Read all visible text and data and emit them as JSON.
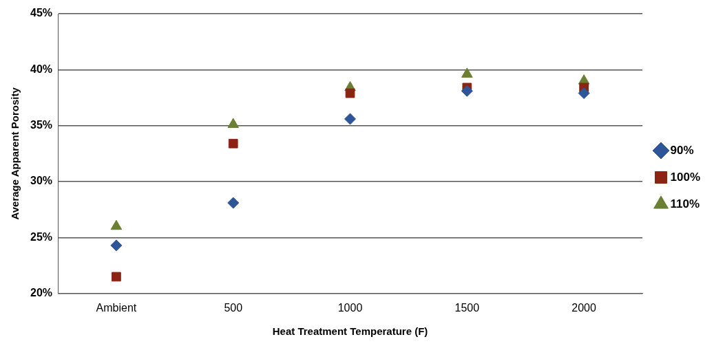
{
  "chart_data": {
    "type": "scatter",
    "xlabel": "Heat Treatment Temperature (F)",
    "ylabel": "Average Apparent Porosity",
    "categories": [
      "Ambient",
      "500",
      "1000",
      "1500",
      "2000"
    ],
    "series": [
      {
        "name": "90%",
        "color": "#2e5597",
        "marker": "diamond",
        "values": [
          24.3,
          28.1,
          35.6,
          38.1,
          37.9
        ]
      },
      {
        "name": "100%",
        "color": "#8b2412",
        "marker": "square",
        "values": [
          21.5,
          33.4,
          37.9,
          38.4,
          38.4
        ]
      },
      {
        "name": "110%",
        "color": "#6b7f33",
        "marker": "triangle",
        "values": [
          26.0,
          35.1,
          38.4,
          39.6,
          39.0
        ]
      }
    ],
    "ylim": [
      20,
      45
    ],
    "yticks": [
      {
        "value": 20,
        "label": "20%"
      },
      {
        "value": 25,
        "label": "25%"
      },
      {
        "value": 30,
        "label": "30%"
      },
      {
        "value": 35,
        "label": "35%"
      },
      {
        "value": 40,
        "label": "40%"
      },
      {
        "value": 45,
        "label": "45%"
      }
    ],
    "grid": "y",
    "legend": "right"
  }
}
